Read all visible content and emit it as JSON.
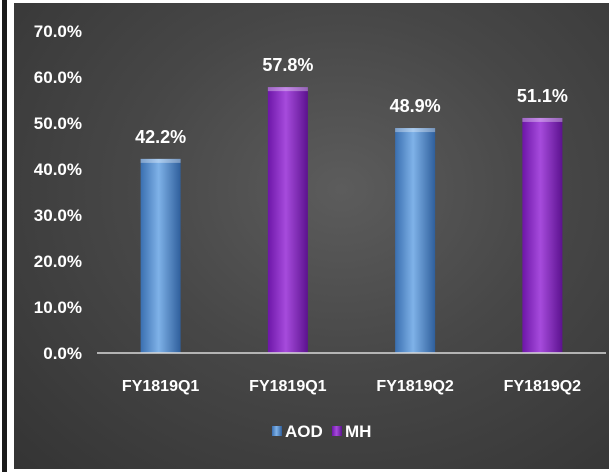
{
  "chart_data": {
    "type": "bar",
    "categories": [
      "FY1819Q1",
      "FY1819Q1",
      "FY1819Q2",
      "FY1819Q2"
    ],
    "series": [
      {
        "name": "AOD",
        "values": [
          42.2,
          null,
          48.9,
          null
        ],
        "color": "#5b9bd5"
      },
      {
        "name": "MH",
        "values": [
          null,
          57.8,
          null,
          51.1
        ],
        "color": "#8e24c8"
      }
    ],
    "data_labels": [
      "42.2%",
      "57.8%",
      "48.9%",
      "51.1%"
    ],
    "y_ticks": [
      "0.0%",
      "10.0%",
      "20.0%",
      "30.0%",
      "40.0%",
      "50.0%",
      "60.0%",
      "70.0%"
    ],
    "ylim": [
      0,
      70
    ],
    "legend_position": "bottom",
    "title": "",
    "xlabel": "",
    "ylabel": "",
    "grid": false
  }
}
